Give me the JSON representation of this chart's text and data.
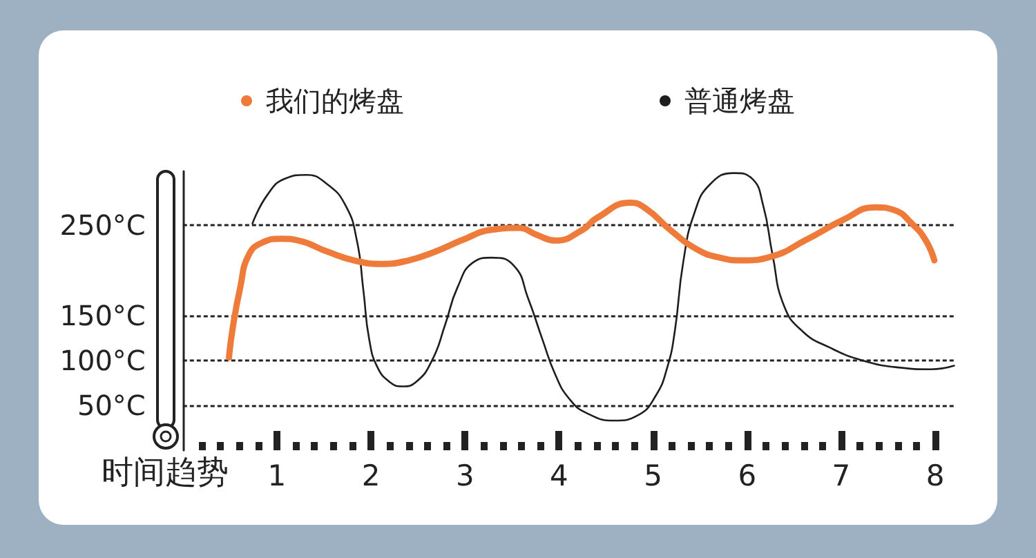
{
  "chart_data": {
    "type": "line",
    "xlabel": "时间趋势",
    "xlim": [
      0,
      8.2
    ],
    "xticks": [
      {
        "value": 0.2,
        "label": null
      },
      {
        "value": 0.4,
        "label": null
      },
      {
        "value": 0.6,
        "label": null
      },
      {
        "value": 0.8,
        "label": null
      },
      1,
      {
        "value": 1.2,
        "label": null
      },
      {
        "value": 1.4,
        "label": null
      },
      {
        "value": 1.6,
        "label": null
      },
      {
        "value": 1.8,
        "label": null
      },
      2,
      {
        "value": 2.2,
        "label": null
      },
      {
        "value": 2.4,
        "label": null
      },
      {
        "value": 2.6,
        "label": null
      },
      {
        "value": 2.8,
        "label": null
      },
      3,
      {
        "value": 3.2,
        "label": null
      },
      {
        "value": 3.4,
        "label": null
      },
      {
        "value": 3.6,
        "label": null
      },
      {
        "value": 3.8,
        "label": null
      },
      4,
      {
        "value": 4.2,
        "label": null
      },
      {
        "value": 4.4,
        "label": null
      },
      {
        "value": 4.6,
        "label": null
      },
      {
        "value": 4.8,
        "label": null
      },
      5,
      {
        "value": 5.2,
        "label": null
      },
      {
        "value": 5.4,
        "label": null
      },
      {
        "value": 5.6,
        "label": null
      },
      {
        "value": 5.8,
        "label": null
      },
      6,
      {
        "value": 6.2,
        "label": null
      },
      {
        "value": 6.4,
        "label": null
      },
      {
        "value": 6.6,
        "label": null
      },
      {
        "value": 6.8,
        "label": null
      },
      7,
      {
        "value": 7.2,
        "label": null
      },
      {
        "value": 7.4,
        "label": null
      },
      {
        "value": 7.6,
        "label": null
      },
      {
        "value": 7.8,
        "label": null
      },
      8
    ],
    "ylim": [
      0,
      310
    ],
    "yticks": [
      {
        "value": 50,
        "label": "50°C"
      },
      {
        "value": 100,
        "label": "100°C"
      },
      {
        "value": 150,
        "label": "150°C"
      },
      {
        "value": 250,
        "label": "250°C"
      }
    ],
    "grid": "y",
    "legend": "top",
    "marker": "none",
    "series": [
      {
        "name": "我们的烤盘",
        "color": "#ee7b3a",
        "x": [
          0.49,
          0.53,
          0.61,
          0.7,
          0.85,
          1.04,
          1.23,
          1.53,
          1.82,
          2.11,
          2.4,
          2.69,
          2.98,
          3.28,
          3.57,
          3.77,
          3.96,
          4.25,
          4.4,
          4.76,
          4.93,
          5.18,
          5.47,
          5.71,
          5.95,
          6.25,
          6.63,
          7.02,
          7.36,
          7.56,
          7.75,
          7.9,
          7.99
        ],
        "values": [
          103,
          136,
          181,
          217,
          231,
          235,
          233,
          221,
          211,
          207,
          211,
          221,
          234,
          245,
          247,
          239,
          233,
          245,
          258,
          275,
          268,
          245,
          223,
          214,
          211,
          215,
          234,
          256,
          270,
          267,
          252,
          233,
          211
        ]
      },
      {
        "name": "普通烤盘",
        "color": "#1e1e1e",
        "x": [
          0.74,
          0.9,
          1.09,
          1.31,
          1.53,
          1.73,
          1.85,
          1.92,
          1.98,
          2.07,
          2.21,
          2.33,
          2.48,
          2.65,
          2.79,
          2.92,
          3.09,
          3.28,
          3.52,
          3.67,
          3.82,
          3.96,
          4.11,
          4.3,
          4.59,
          4.84,
          5.03,
          5.15,
          5.23,
          5.32,
          5.44,
          5.61,
          5.86,
          6.05,
          6.17,
          6.27,
          6.39,
          6.59,
          6.88,
          7.22,
          7.61,
          7.95,
          8.2
        ],
        "values": [
          252,
          284,
          302,
          306,
          296,
          272,
          233,
          177,
          124,
          92,
          75,
          71,
          76,
          100,
          140,
          181,
          209,
          214,
          205,
          169,
          124,
          84,
          57,
          41,
          33,
          39,
          61,
          92,
          132,
          209,
          264,
          296,
          308,
          302,
          272,
          217,
          161,
          132,
          114,
          100,
          92,
          90,
          94
        ]
      }
    ]
  }
}
